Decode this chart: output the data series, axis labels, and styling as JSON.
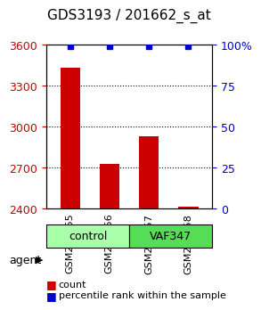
{
  "title": "GDS3193 / 201662_s_at",
  "samples": [
    "GSM264755",
    "GSM264756",
    "GSM264757",
    "GSM264758"
  ],
  "counts": [
    3430,
    2730,
    2930,
    2415
  ],
  "percentile_ranks": [
    99,
    99,
    99,
    99
  ],
  "ylim_left": [
    2400,
    3600
  ],
  "yticks_left": [
    2400,
    2700,
    3000,
    3300,
    3600
  ],
  "ylim_right": [
    0,
    100
  ],
  "yticks_right": [
    0,
    25,
    50,
    75,
    100
  ],
  "bar_color": "#cc0000",
  "dot_color": "#0000cc",
  "groups": [
    {
      "label": "control",
      "indices": [
        0,
        1
      ],
      "color": "#aaffaa"
    },
    {
      "label": "VAF347",
      "indices": [
        2,
        3
      ],
      "color": "#55dd55"
    }
  ],
  "agent_label": "agent",
  "legend_count_label": "count",
  "legend_pct_label": "percentile rank within the sample",
  "background_color": "#ffffff",
  "plot_bg_color": "#ffffff",
  "grid_color": "#000000",
  "left_tick_color": "#cc0000",
  "right_tick_color": "#0000cc",
  "title_fontsize": 11,
  "tick_fontsize": 9,
  "label_fontsize": 9
}
